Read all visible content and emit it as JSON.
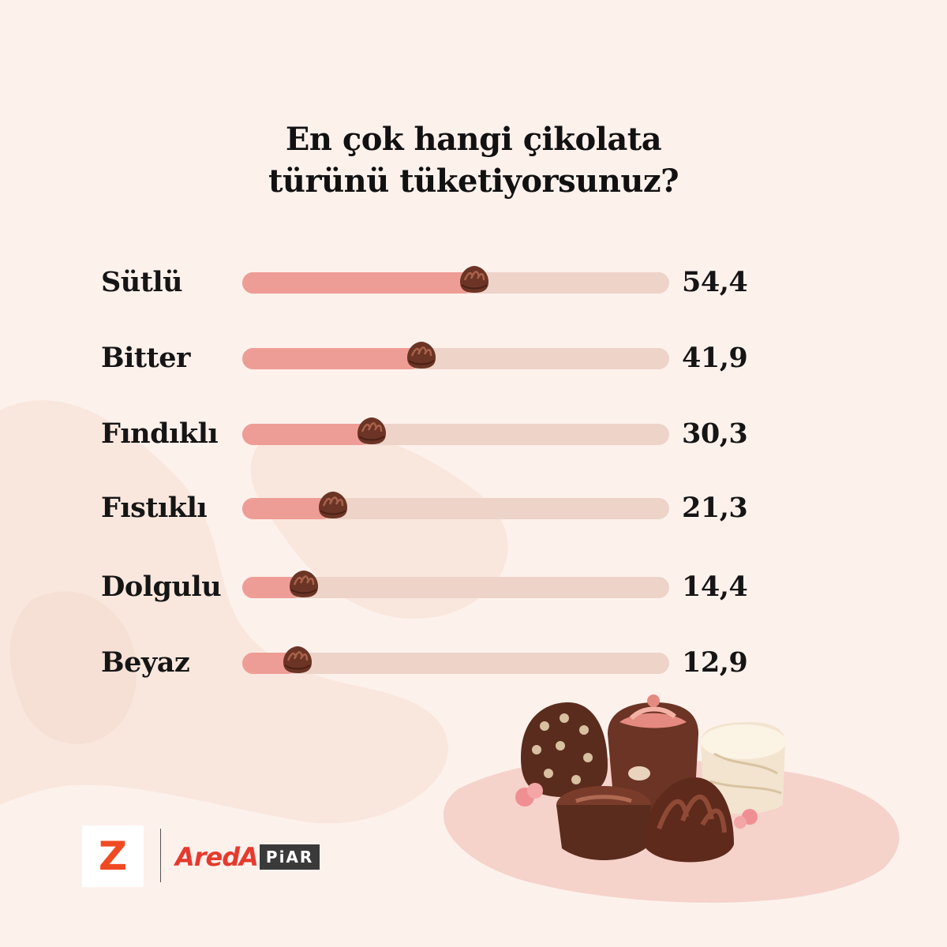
{
  "chart_data": {
    "type": "bar",
    "title_lines": [
      "En çok hangi çikolata",
      "türünü tüketiyorsunuz?"
    ],
    "categories": [
      "Sütlü",
      "Bitter",
      "Fındıklı",
      "Fıstıklı",
      "Dolgulu",
      "Beyaz"
    ],
    "values": [
      54.4,
      41.9,
      30.3,
      21.3,
      14.4,
      12.9
    ],
    "value_labels": [
      "54,4",
      "41,9",
      "30,3",
      "21,3",
      "14,4",
      "12,9"
    ],
    "xlim": [
      0,
      100
    ],
    "orientation": "horizontal",
    "colors": {
      "fill": "#ee9d96",
      "track": "#edd3c8",
      "marker": "#6b3425"
    }
  },
  "brand": {
    "z_letter": "Z",
    "areda_word": "AredA",
    "piar_word": "PiAR"
  }
}
